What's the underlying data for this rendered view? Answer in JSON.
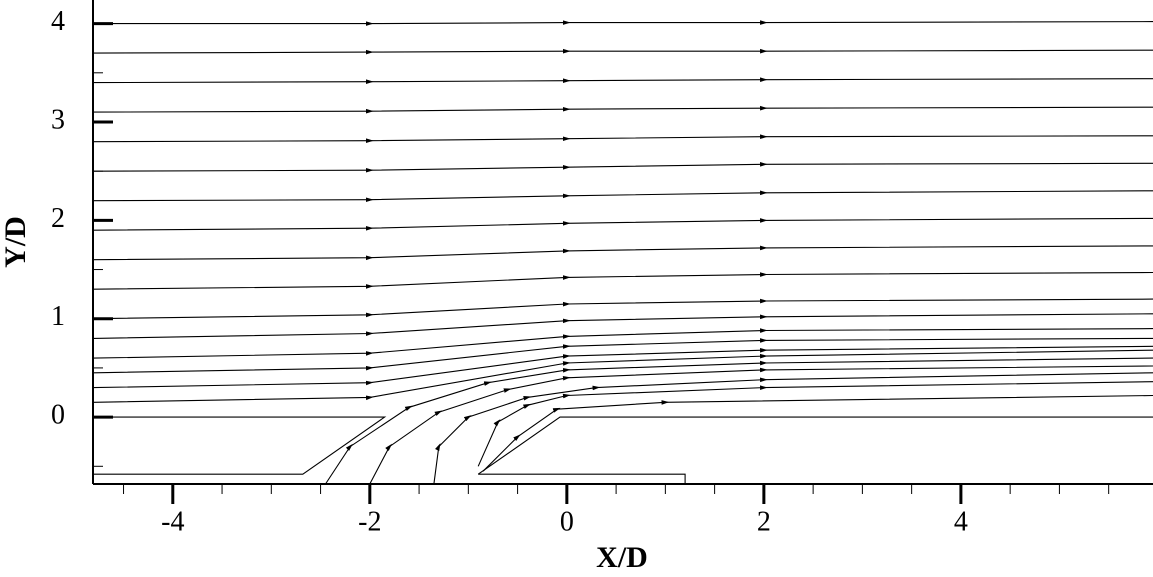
{
  "chart_data": {
    "type": "streamline",
    "x_label": "X/D",
    "y_label": "Y/D",
    "xlim": [
      -4.81,
      5.95
    ],
    "ylim": [
      -0.68,
      4.24
    ],
    "xticks": [
      -4,
      -2,
      0,
      2,
      4
    ],
    "yticks": [
      0,
      1,
      2,
      3,
      4
    ],
    "xminorticks": [
      -4.5,
      -3.5,
      -3,
      -2.5,
      -1.5,
      -1,
      -0.5,
      0.5,
      1,
      1.5,
      2.5,
      3,
      3.5,
      4.5,
      5,
      5.5
    ],
    "yminorticks": [
      -0.5,
      0.5,
      1.5,
      2.5,
      3.5
    ],
    "color": "#000000",
    "walls": [
      {
        "x": [
          -4.81,
          -1.85,
          -2.68,
          -4.81
        ],
        "y": [
          0,
          0,
          -0.58,
          -0.58
        ]
      },
      {
        "x": [
          -0.9,
          -0.07,
          5.95
        ],
        "y": [
          -0.58,
          0,
          0
        ]
      },
      {
        "x": [
          -0.9,
          1.2,
          1.2
        ],
        "y": [
          -0.58,
          -0.58,
          -0.68
        ]
      }
    ],
    "series": [
      {
        "x": [
          -4.8,
          -2,
          0,
          2,
          5.95
        ],
        "y": [
          0.15,
          0.2,
          0.55,
          0.62,
          0.68
        ]
      },
      {
        "x": [
          -4.8,
          -2,
          0,
          2,
          5.95
        ],
        "y": [
          0.3,
          0.35,
          0.62,
          0.68,
          0.72
        ]
      },
      {
        "x": [
          -4.8,
          -2,
          0,
          2,
          5.95
        ],
        "y": [
          0.45,
          0.5,
          0.72,
          0.78,
          0.8
        ]
      },
      {
        "x": [
          -4.8,
          -2,
          0,
          2,
          5.95
        ],
        "y": [
          0.6,
          0.65,
          0.82,
          0.88,
          0.9
        ]
      },
      {
        "x": [
          -4.8,
          -2,
          0,
          2,
          5.95
        ],
        "y": [
          0.8,
          0.85,
          0.98,
          1.02,
          1.05
        ]
      },
      {
        "x": [
          -4.8,
          -2,
          0,
          2,
          5.95
        ],
        "y": [
          1.0,
          1.04,
          1.15,
          1.18,
          1.2
        ]
      },
      {
        "x": [
          -4.8,
          -2,
          0,
          2,
          5.95
        ],
        "y": [
          1.3,
          1.33,
          1.42,
          1.45,
          1.47
        ]
      },
      {
        "x": [
          -4.8,
          -2,
          0,
          2,
          5.95
        ],
        "y": [
          1.6,
          1.62,
          1.69,
          1.72,
          1.74
        ]
      },
      {
        "x": [
          -4.8,
          -2,
          0,
          2,
          5.95
        ],
        "y": [
          1.9,
          1.92,
          1.97,
          2.0,
          2.02
        ]
      },
      {
        "x": [
          -4.8,
          -2,
          0,
          2,
          5.95
        ],
        "y": [
          2.2,
          2.21,
          2.25,
          2.28,
          2.3
        ]
      },
      {
        "x": [
          -4.8,
          -2,
          0,
          2,
          5.95
        ],
        "y": [
          2.5,
          2.51,
          2.54,
          2.57,
          2.58
        ]
      },
      {
        "x": [
          -4.8,
          -2,
          0,
          2,
          5.95
        ],
        "y": [
          2.8,
          2.81,
          2.83,
          2.85,
          2.86
        ]
      },
      {
        "x": [
          -4.8,
          -2,
          0,
          2,
          5.95
        ],
        "y": [
          3.1,
          3.11,
          3.13,
          3.14,
          3.15
        ]
      },
      {
        "x": [
          -4.8,
          -2,
          0,
          2,
          5.95
        ],
        "y": [
          3.4,
          3.41,
          3.42,
          3.43,
          3.44
        ]
      },
      {
        "x": [
          -4.8,
          -2,
          0,
          2,
          5.95
        ],
        "y": [
          3.7,
          3.71,
          3.72,
          3.72,
          3.73
        ]
      },
      {
        "x": [
          -4.8,
          -2,
          0,
          2,
          5.95
        ],
        "y": [
          4.0,
          4.0,
          4.01,
          4.01,
          4.02
        ]
      },
      {
        "x": [
          -2.45,
          -2.2,
          -1.6,
          -0.8,
          0,
          2,
          5.95
        ],
        "y": [
          -0.68,
          -0.3,
          0.1,
          0.35,
          0.48,
          0.55,
          0.6
        ]
      },
      {
        "x": [
          -2.0,
          -1.8,
          -1.3,
          -0.6,
          0,
          2,
          5.95
        ],
        "y": [
          -0.68,
          -0.3,
          0.05,
          0.28,
          0.4,
          0.48,
          0.52
        ]
      },
      {
        "x": [
          -1.35,
          -1.3,
          -1.0,
          -0.4,
          0.3,
          2,
          5.95
        ],
        "y": [
          -0.68,
          -0.3,
          0.0,
          0.2,
          0.3,
          0.38,
          0.45
        ]
      },
      {
        "x": [
          -0.9,
          -0.7,
          -0.4,
          0,
          2,
          5.95
        ],
        "y": [
          -0.5,
          -0.05,
          0.12,
          0.22,
          0.3,
          0.36
        ]
      },
      {
        "x": [
          -0.85,
          -0.5,
          -0.1,
          1,
          5.95
        ],
        "y": [
          -0.55,
          -0.2,
          0.08,
          0.15,
          0.22
        ]
      }
    ]
  }
}
